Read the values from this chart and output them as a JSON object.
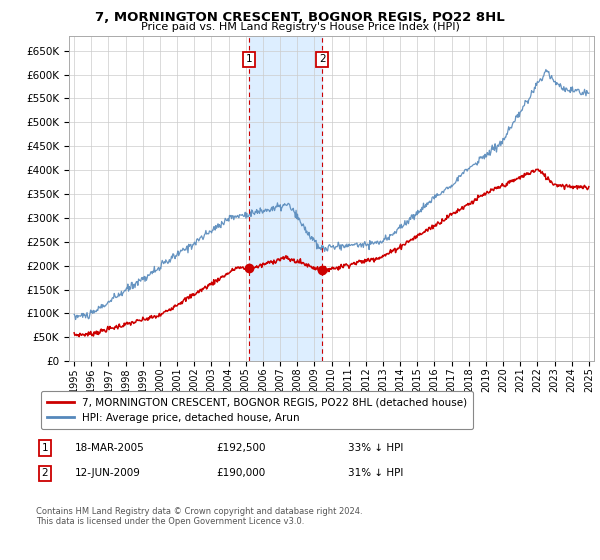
{
  "title": "7, MORNINGTON CRESCENT, BOGNOR REGIS, PO22 8HL",
  "subtitle": "Price paid vs. HM Land Registry's House Price Index (HPI)",
  "legend_line1": "7, MORNINGTON CRESCENT, BOGNOR REGIS, PO22 8HL (detached house)",
  "legend_line2": "HPI: Average price, detached house, Arun",
  "annotation1_label": "1",
  "annotation1_date": "18-MAR-2005",
  "annotation1_price": "£192,500",
  "annotation1_hpi": "33% ↓ HPI",
  "annotation2_label": "2",
  "annotation2_date": "12-JUN-2009",
  "annotation2_price": "£190,000",
  "annotation2_hpi": "31% ↓ HPI",
  "footnote": "Contains HM Land Registry data © Crown copyright and database right 2024.\nThis data is licensed under the Open Government Licence v3.0.",
  "hpi_color": "#5588bb",
  "price_color": "#cc0000",
  "shade_color": "#ddeeff",
  "grid_color": "#cccccc",
  "background_color": "#ffffff",
  "ylim": [
    0,
    680000
  ],
  "yticks": [
    0,
    50000,
    100000,
    150000,
    200000,
    250000,
    300000,
    350000,
    400000,
    450000,
    500000,
    550000,
    600000,
    650000
  ],
  "sale1_year": 2005.2,
  "sale1_price": 192500,
  "sale2_year": 2009.45,
  "sale2_price": 190000,
  "xlim_left": 1994.7,
  "xlim_right": 2025.3
}
